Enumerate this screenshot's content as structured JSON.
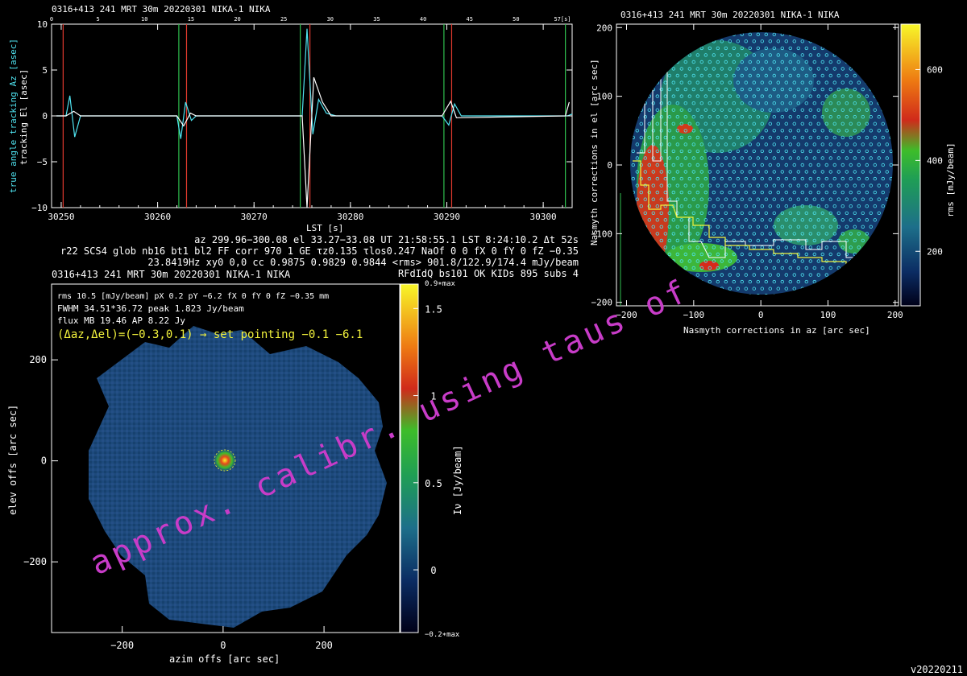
{
  "colors": {
    "background": "#000000",
    "foreground": "#ffffff",
    "cyan": "#4fe3f0",
    "red": "#e03a2e",
    "green": "#2fbf4f",
    "yellow": "#f2f23c",
    "magenta": "#e030e0",
    "map_blue": "#1c4b7d"
  },
  "tracking": {
    "title": "0316+413 241 MRT 30m  20220301 NIKA-1 NIKA",
    "ylabel_az": "true angle tracking Az [asec]",
    "ylabel_el": "tracking El [asec]",
    "xlabel": "LST [s]",
    "x_ticks": [
      "30250",
      "30260",
      "30270",
      "30280",
      "30290",
      "30300"
    ],
    "y_ticks": [
      "10",
      "5",
      "0",
      "−5",
      "−10"
    ],
    "top_ticks": [
      "0",
      "5",
      "10",
      "15",
      "20",
      "25",
      "30",
      "35",
      "40",
      "45",
      "50",
      "57[s]"
    ]
  },
  "info": {
    "line1": "az 299.96−300.08 el 33.27−33.08 UT 21:58:55.1 LST 8:24:10.2 Δt 52s",
    "line2": "r22 SCS4 glob nb16 bt1 bl2 FF corr 970 1 GE τz0.135 τlos0.247 NaOf 0 0 fX 0 fY 0 fZ −0.35",
    "line3": "23.8419Hz xy0 0,0 cc 0.9875 0.9829 0.9844 <rms> 901.8/122.9/174.4 mJy/beam",
    "line4": "RFdIdQ bs101 OK KIDs 895 subs 4"
  },
  "map": {
    "title": "0316+413 241 MRT 30m  20220301 NIKA-1 NIKA",
    "stats1": "rms 10.5 [mJy/beam] pX 0.2 pY −6.2 fX 0 fY 0 fZ −0.35 mm",
    "stats2": "FWHM 34.51*36.72 peak 1.823 Jy/beam",
    "stats3": "flux MB 19.46 AP 8.22 Jy",
    "pointing": "(Δaz,Δel)=(−0.3,0.1) → set pointing −0.1 −6.1",
    "xlabel": "azim offs [arc sec]",
    "ylabel": "elev offs [arc sec]",
    "x_ticks": [
      "−200",
      "0",
      "200"
    ],
    "y_ticks": [
      "200",
      "0",
      "−200"
    ],
    "cbar_label": "Iν [Jy/beam]",
    "cbar_ticks": [
      "1.5",
      "1",
      "0.5",
      "0"
    ],
    "cbar_top": "0.9∗max",
    "cbar_bottom": "−0.2∗max"
  },
  "rms_map": {
    "title": "0316+413 241 MRT 30m  20220301 NIKA-1 NIKA",
    "xlabel": "Nasmyth corrections in az [arc sec]",
    "ylabel": "Nasmyth corrections in el [arc sec]",
    "x_ticks": [
      "−200",
      "−100",
      "0",
      "100",
      "200"
    ],
    "y_ticks": [
      "200",
      "100",
      "0",
      "−100",
      "−200"
    ],
    "cbar_label": "rms [mJy/beam]",
    "cbar_ticks": [
      "600",
      "400",
      "200"
    ]
  },
  "watermark": "approx. calibr. using taus of",
  "version": "v20220211",
  "chart_data": [
    {
      "type": "line",
      "title": "0316+413 241 MRT 30m  20220301 NIKA-1 NIKA",
      "xlabel": "LST [s]",
      "ylabel": "true angle tracking Az [asec] / tracking El [asec]",
      "xlim": [
        30249,
        30303
      ],
      "ylim": [
        -10,
        10
      ],
      "series": [
        {
          "name": "true angle tracking Az [asec]",
          "x": [
            30249.5,
            30250.5,
            30250.9,
            30251.4,
            30252,
            30262,
            30262.4,
            30262.9,
            30263.5,
            30264,
            30275,
            30275.5,
            30276.1,
            30276.7,
            30277.5,
            30278.5,
            30289.5,
            30290.2,
            30290.8,
            30291.5,
            30302.5,
            30303
          ],
          "y": [
            0,
            0,
            2.2,
            -2.3,
            0,
            0,
            -2.5,
            1.5,
            -0.5,
            0,
            0,
            9.5,
            -2.0,
            1.8,
            0.3,
            0,
            0,
            -1.0,
            1.3,
            0,
            0,
            0.2
          ]
        },
        {
          "name": "tracking El [asec]",
          "x": [
            30249.5,
            30250.5,
            30251.3,
            30252,
            30262,
            30262.7,
            30263.4,
            30264,
            30275,
            30275.5,
            30276.2,
            30277.1,
            30278,
            30289.5,
            30290.4,
            30291,
            30302.3,
            30302.7
          ],
          "y": [
            0,
            0,
            0.5,
            0,
            0,
            -1.1,
            0.3,
            0,
            0,
            -10,
            4.2,
            1.5,
            0,
            0,
            1.6,
            -0.2,
            0,
            1.5
          ]
        }
      ],
      "green_markers": [
        30262.2,
        30274.8,
        30289.7,
        30302.3
      ],
      "red_markers": [
        30250.2,
        30263.0,
        30275.8,
        30290.5
      ]
    },
    {
      "type": "heatmap",
      "title": "0316+413 241 MRT 30m  20220301 NIKA-1 NIKA",
      "xlabel": "azim offs [arc sec]",
      "ylabel": "elev offs [arc sec]",
      "xlim": [
        -340,
        350
      ],
      "ylim": [
        -340,
        350
      ],
      "source_position": [
        0,
        0
      ],
      "peak": 1.823,
      "colorbar": {
        "label": "Iν [Jy/beam]",
        "range": [
          -0.36,
          1.64
        ]
      }
    },
    {
      "type": "heatmap",
      "title": "0316+413 241 MRT 30m  20220301 NIKA-1 NIKA",
      "xlabel": "Nasmyth corrections in az [arc sec]",
      "ylabel": "Nasmyth corrections in el [arc sec]",
      "xlim": [
        -215,
        205
      ],
      "ylim": [
        -205,
        205
      ],
      "colorbar": {
        "label": "rms [mJy/beam]",
        "range": [
          80,
          700
        ]
      }
    }
  ]
}
